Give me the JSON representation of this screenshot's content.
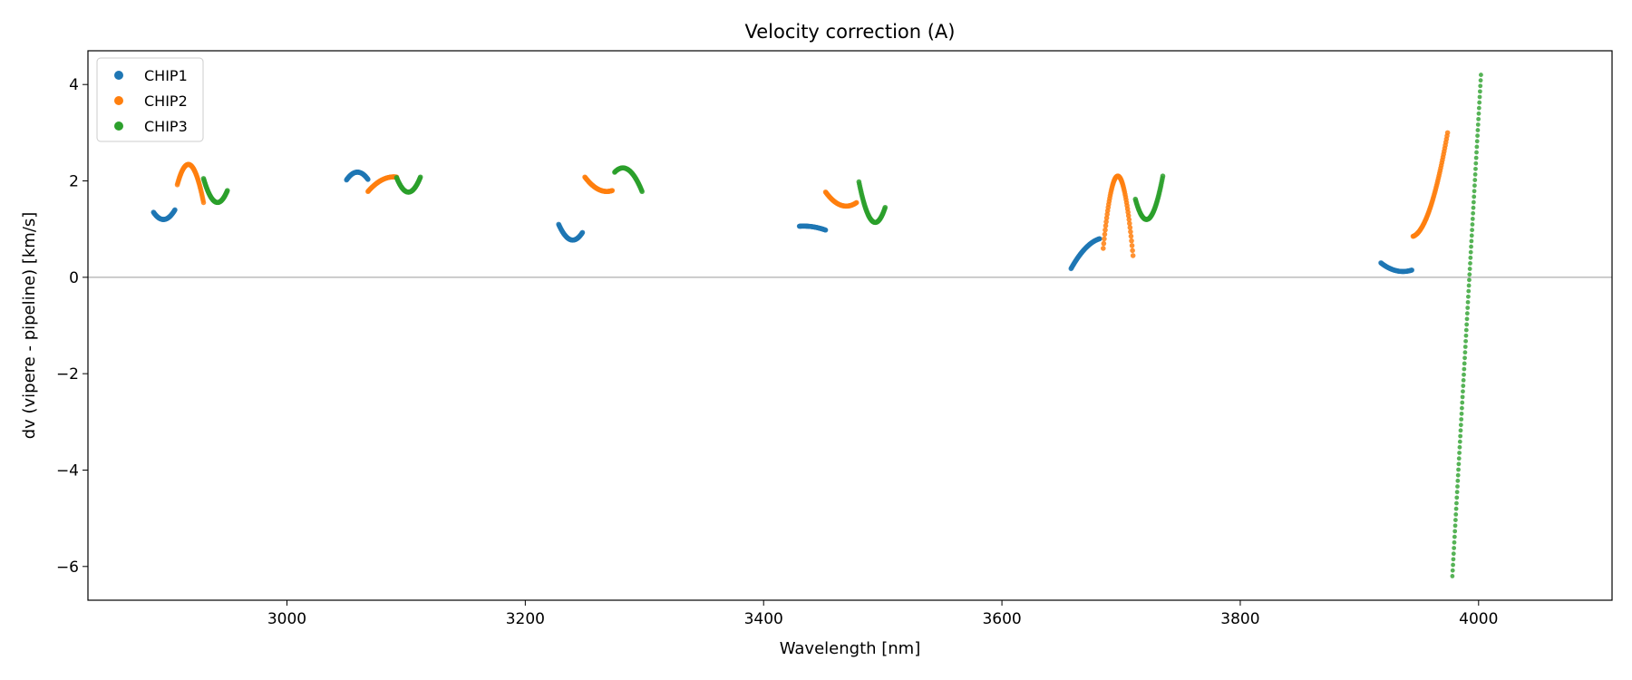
{
  "chart_data": {
    "type": "scatter",
    "title": "Velocity correction (A)",
    "xlabel": "Wavelength [nm]",
    "ylabel": "dv (vipere - pipeline) [km/s]",
    "xlim": [
      2833,
      4112
    ],
    "ylim": [
      -6.7,
      4.7
    ],
    "xticks": [
      3000,
      3200,
      3400,
      3600,
      3800,
      4000
    ],
    "yticks": [
      -6,
      -4,
      -2,
      0,
      2,
      4
    ],
    "reference_line_y": 0,
    "legend": {
      "location": "upper-left",
      "entries": [
        "CHIP1",
        "CHIP2",
        "CHIP3"
      ]
    },
    "series": [
      {
        "name": "CHIP1",
        "color": "#1f77b4",
        "segments": [
          {
            "x0": 2888,
            "x1": 2906,
            "points": [
              [
                0,
                1.35
              ],
              [
                0.45,
                1.2
              ],
              [
                1,
                1.4
              ]
            ]
          },
          {
            "x0": 3050,
            "x1": 3068,
            "points": [
              [
                0,
                2.02
              ],
              [
                0.45,
                2.18
              ],
              [
                1,
                2.03
              ]
            ]
          },
          {
            "x0": 3228,
            "x1": 3248,
            "points": [
              [
                0,
                1.1
              ],
              [
                0.5,
                0.78
              ],
              [
                1,
                0.93
              ]
            ]
          },
          {
            "x0": 3430,
            "x1": 3452,
            "points": [
              [
                0,
                1.06
              ],
              [
                0.6,
                1.04
              ],
              [
                1,
                0.98
              ]
            ]
          },
          {
            "x0": 3658,
            "x1": 3682,
            "points": [
              [
                0,
                0.18
              ],
              [
                0.5,
                0.6
              ],
              [
                1,
                0.8
              ]
            ]
          },
          {
            "x0": 3918,
            "x1": 3944,
            "points": [
              [
                0,
                0.3
              ],
              [
                0.55,
                0.13
              ],
              [
                1,
                0.15
              ]
            ]
          }
        ]
      },
      {
        "name": "CHIP2",
        "color": "#ff7f0e",
        "segments": [
          {
            "x0": 2908,
            "x1": 2930,
            "points": [
              [
                0,
                1.92
              ],
              [
                0.35,
                2.33
              ],
              [
                1,
                1.55
              ]
            ]
          },
          {
            "x0": 3068,
            "x1": 3092,
            "points": [
              [
                0,
                1.78
              ],
              [
                0.6,
                2.05
              ],
              [
                1,
                2.08
              ]
            ]
          },
          {
            "x0": 3250,
            "x1": 3273,
            "points": [
              [
                0,
                2.08
              ],
              [
                0.6,
                1.8
              ],
              [
                1,
                1.8
              ]
            ]
          },
          {
            "x0": 3452,
            "x1": 3478,
            "points": [
              [
                0,
                1.77
              ],
              [
                0.6,
                1.48
              ],
              [
                1,
                1.55
              ]
            ]
          },
          {
            "x0": 3685,
            "x1": 3710,
            "points": [
              [
                0,
                0.6
              ],
              [
                0.48,
                2.1
              ],
              [
                1,
                0.45
              ]
            ]
          },
          {
            "x0": 3945,
            "x1": 3974,
            "points": [
              [
                0,
                0.85
              ],
              [
                0.5,
                1.45
              ],
              [
                1,
                3.0
              ]
            ]
          }
        ]
      },
      {
        "name": "CHIP3",
        "color": "#2ca02c",
        "segments": [
          {
            "x0": 2930,
            "x1": 2950,
            "points": [
              [
                0,
                2.05
              ],
              [
                0.45,
                1.58
              ],
              [
                1,
                1.8
              ]
            ]
          },
          {
            "x0": 3092,
            "x1": 3112,
            "points": [
              [
                0,
                2.07
              ],
              [
                0.45,
                1.77
              ],
              [
                1,
                2.08
              ]
            ]
          },
          {
            "x0": 3275,
            "x1": 3298,
            "points": [
              [
                0,
                2.18
              ],
              [
                0.3,
                2.27
              ],
              [
                1,
                1.78
              ]
            ]
          },
          {
            "x0": 3480,
            "x1": 3502,
            "points": [
              [
                0,
                1.98
              ],
              [
                0.55,
                1.15
              ],
              [
                1,
                1.45
              ]
            ]
          },
          {
            "x0": 3712,
            "x1": 3735,
            "points": [
              [
                0,
                1.62
              ],
              [
                0.4,
                1.2
              ],
              [
                1,
                2.1
              ]
            ]
          },
          {
            "x0": 3978,
            "x1": 4002,
            "points": [
              [
                0,
                -6.2
              ],
              [
                0.45,
                -1.5
              ],
              [
                1,
                4.2
              ]
            ],
            "sparse": true
          }
        ]
      }
    ]
  }
}
